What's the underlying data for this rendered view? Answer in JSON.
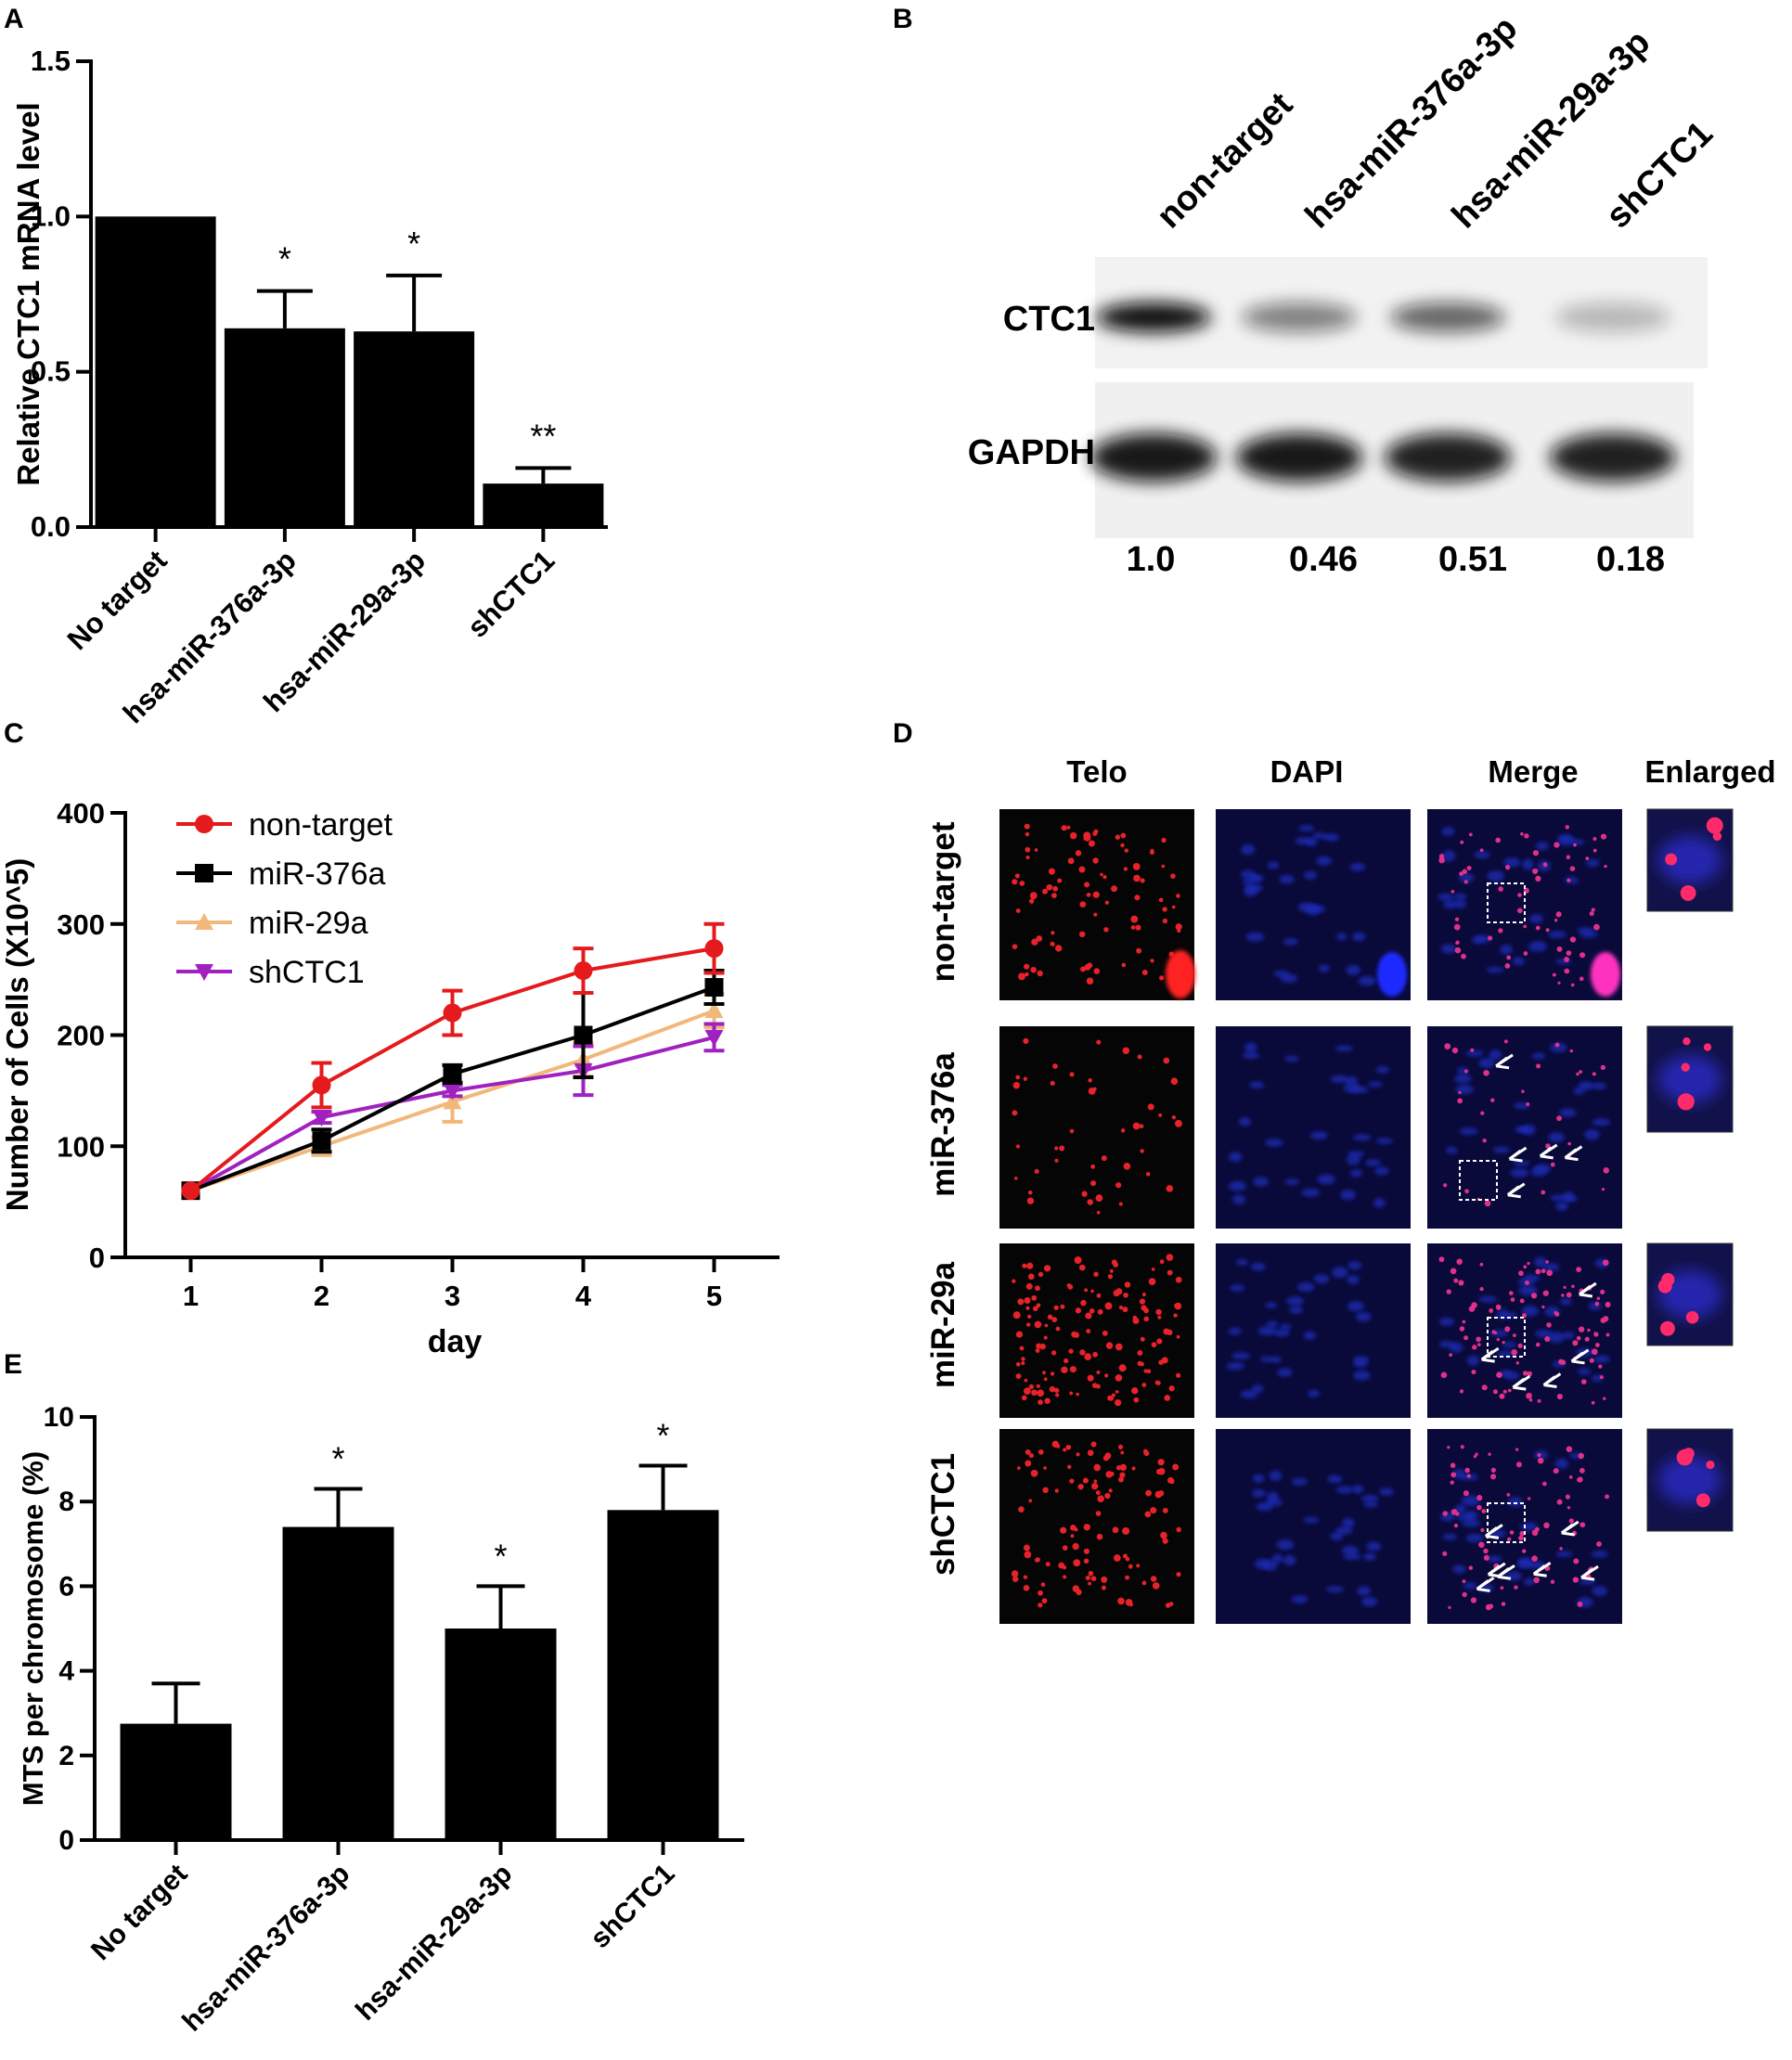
{
  "panel_letters": {
    "A": "A",
    "B": "B",
    "C": "C",
    "D": "D",
    "E": "E"
  },
  "colors": {
    "bar": "#000000",
    "non_target": "#e41a1c",
    "miR_376a": "#000000",
    "miR_29a": "#f2b77a",
    "shCTC1": "#a020c0"
  },
  "chart_data": [
    {
      "panel": "A",
      "type": "bar",
      "ylabel": "Relative CTC1 mRNA level",
      "xlabel": "",
      "ylim": [
        0,
        1.5
      ],
      "yticks": [
        "0.0",
        "0.5",
        "1.0",
        "1.5"
      ],
      "ytick_values": [
        0,
        0.5,
        1.0,
        1.5
      ],
      "categories": [
        "No target",
        "hsa-miR-376a-3p",
        "hsa-miR-29a-3p",
        "shCTC1"
      ],
      "values": [
        1.0,
        0.64,
        0.63,
        0.14
      ],
      "errors": [
        0,
        0.12,
        0.18,
        0.05
      ],
      "significance": [
        "",
        "*",
        "*",
        "**"
      ]
    },
    {
      "panel": "C",
      "type": "line",
      "xlabel": "day",
      "ylabel": "Number of Cells (X10^5)",
      "xlim": [
        0.5,
        5.5
      ],
      "ylim": [
        0,
        400
      ],
      "x": [
        1,
        2,
        3,
        4,
        5
      ],
      "xticks": [
        "1",
        "2",
        "3",
        "4",
        "5"
      ],
      "yticks": [
        "0",
        "100",
        "200",
        "300",
        "400"
      ],
      "ytick_values": [
        0,
        100,
        200,
        300,
        400
      ],
      "legend_position": "top-left",
      "series": [
        {
          "name": "non-target",
          "values": [
            60,
            155,
            220,
            258,
            278
          ],
          "errors": [
            0,
            20,
            20,
            20,
            22
          ],
          "marker": "circle",
          "color_key": "non_target"
        },
        {
          "name": "miR-376a",
          "values": [
            60,
            105,
            165,
            200,
            243
          ],
          "errors": [
            0,
            10,
            8,
            38,
            15
          ],
          "marker": "square",
          "color_key": "miR_376a"
        },
        {
          "name": "miR-29a",
          "values": [
            60,
            100,
            140,
            178,
            222
          ],
          "errors": [
            0,
            8,
            18,
            15,
            15
          ],
          "marker": "triangle-up",
          "color_key": "miR_29a"
        },
        {
          "name": "shCTC1",
          "values": [
            60,
            126,
            150,
            168,
            198
          ],
          "errors": [
            0,
            5,
            5,
            22,
            12
          ],
          "marker": "triangle-down",
          "color_key": "shCTC1"
        }
      ]
    },
    {
      "panel": "E",
      "type": "bar",
      "ylabel": "MTS per chromosome (%)",
      "xlabel": "",
      "ylim": [
        0,
        10
      ],
      "yticks": [
        "0",
        "2",
        "4",
        "6",
        "8",
        "10"
      ],
      "ytick_values": [
        0,
        2,
        4,
        6,
        8,
        10
      ],
      "categories": [
        "No target",
        "hsa-miR-376a-3p",
        "hsa-miR-29a-3p",
        "shCTC1"
      ],
      "values": [
        2.75,
        7.4,
        5.0,
        7.8
      ],
      "errors": [
        0.95,
        0.9,
        1.0,
        1.05
      ],
      "significance": [
        "",
        "*",
        "*",
        "*"
      ]
    }
  ],
  "western_blot": {
    "lanes": [
      "non-target",
      "hsa-miR-376a-3p",
      "hsa-miR-29a-3p",
      "shCTC1"
    ],
    "rows": [
      "CTC1",
      "GAPDH"
    ],
    "ctc1_band_intensity": [
      1.0,
      0.4,
      0.55,
      0.12
    ],
    "gapdh_band_intensity": [
      1.0,
      1.0,
      0.95,
      0.95
    ],
    "quantification": [
      "1.0",
      "0.46",
      "0.51",
      "0.18"
    ]
  },
  "microscopy": {
    "columns": [
      "Telo",
      "DAPI",
      "Merge",
      "Enlarged"
    ],
    "rows": [
      "non-target",
      "miR-376a",
      "miR-29a",
      "shCTC1"
    ]
  }
}
